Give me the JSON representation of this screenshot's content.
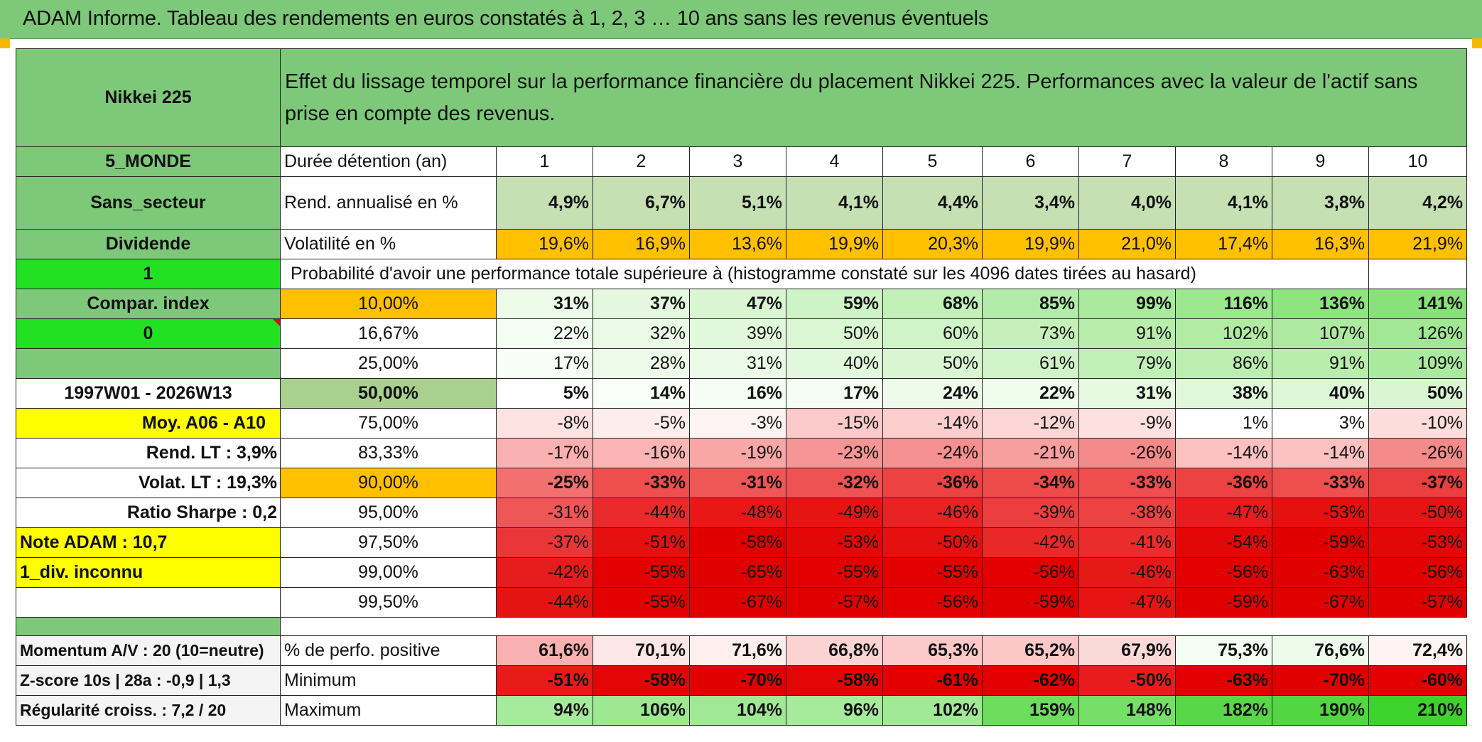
{
  "title": "ADAM Informe. Tableau des rendements en euros constatés à 1, 2, 3 … 10 ans sans les revenus éventuels",
  "header": {
    "asset": "Nikkei 225",
    "description": "Effet du lissage temporel sur la performance financière du placement Nikkei 225. Performances avec la valeur de l'actif sans prise en compte des revenus."
  },
  "sidebar": {
    "zone": "5_MONDE",
    "sector": "Sans_secteur",
    "dividend_label": "Dividende",
    "dividend_value": "1",
    "compar_label": "Compar. index",
    "compar_value": "0",
    "period": "1997W01 - 2026W13",
    "moy": "Moy. A06 - A10",
    "rend_lt": "Rend. LT :   3,9%",
    "volat_lt": "Volat. LT :   19,3%",
    "sharpe": "Ratio Sharpe :    0,2",
    "note": "Note ADAM : 10,7",
    "div_info": "1_div. inconnu"
  },
  "durations": {
    "label": "Durée détention (an)",
    "values": [
      "1",
      "2",
      "3",
      "4",
      "5",
      "6",
      "7",
      "8",
      "9",
      "10"
    ]
  },
  "rend": {
    "label": "Rend. annualisé en %",
    "values": [
      "4,9%",
      "6,7%",
      "5,1%",
      "4,1%",
      "4,4%",
      "3,4%",
      "4,0%",
      "4,1%",
      "3,8%",
      "4,2%"
    ]
  },
  "volat": {
    "label": "Volatilité en %",
    "values": [
      "19,6%",
      "16,9%",
      "13,6%",
      "19,9%",
      "20,3%",
      "19,9%",
      "21,0%",
      "17,4%",
      "16,3%",
      "21,9%"
    ]
  },
  "prob_header": "Probabilité d'avoir une performance totale supérieure à (histogramme constaté sur les 4096 dates tirées au hasard)",
  "prob_rows": [
    {
      "label": "10,00%",
      "values": [
        "31%",
        "37%",
        "47%",
        "59%",
        "68%",
        "85%",
        "99%",
        "116%",
        "136%",
        "141%"
      ]
    },
    {
      "label": "16,67%",
      "values": [
        "22%",
        "32%",
        "39%",
        "50%",
        "60%",
        "73%",
        "91%",
        "102%",
        "107%",
        "126%"
      ]
    },
    {
      "label": "25,00%",
      "values": [
        "17%",
        "28%",
        "31%",
        "40%",
        "50%",
        "61%",
        "79%",
        "86%",
        "91%",
        "109%"
      ]
    },
    {
      "label": "50,00%",
      "values": [
        "5%",
        "14%",
        "16%",
        "17%",
        "24%",
        "22%",
        "31%",
        "38%",
        "40%",
        "50%"
      ]
    },
    {
      "label": "75,00%",
      "values": [
        "-8%",
        "-5%",
        "-3%",
        "-15%",
        "-14%",
        "-12%",
        "-9%",
        "1%",
        "3%",
        "-10%"
      ]
    },
    {
      "label": "83,33%",
      "values": [
        "-17%",
        "-16%",
        "-19%",
        "-23%",
        "-24%",
        "-21%",
        "-26%",
        "-14%",
        "-14%",
        "-26%"
      ]
    },
    {
      "label": "90,00%",
      "values": [
        "-25%",
        "-33%",
        "-31%",
        "-32%",
        "-36%",
        "-34%",
        "-33%",
        "-36%",
        "-33%",
        "-37%"
      ]
    },
    {
      "label": "95,00%",
      "values": [
        "-31%",
        "-44%",
        "-48%",
        "-49%",
        "-46%",
        "-39%",
        "-38%",
        "-47%",
        "-53%",
        "-50%"
      ]
    },
    {
      "label": "97,50%",
      "values": [
        "-37%",
        "-51%",
        "-58%",
        "-53%",
        "-50%",
        "-42%",
        "-41%",
        "-54%",
        "-59%",
        "-53%"
      ]
    },
    {
      "label": "99,00%",
      "values": [
        "-42%",
        "-55%",
        "-65%",
        "-55%",
        "-55%",
        "-56%",
        "-46%",
        "-56%",
        "-63%",
        "-56%"
      ]
    },
    {
      "label": "99,50%",
      "values": [
        "-44%",
        "-55%",
        "-67%",
        "-57%",
        "-56%",
        "-59%",
        "-47%",
        "-59%",
        "-67%",
        "-57%"
      ]
    }
  ],
  "bottom": {
    "momentum": "Momentum A/V : 20 (10=neutre)",
    "zscore": "Z-score 10s | 28a : -0,9 | 1,3",
    "regularite": "Régularité croiss. : 7,2 / 20",
    "pos": {
      "label": "% de perfo. positive",
      "values": [
        "61,6%",
        "70,1%",
        "71,6%",
        "66,8%",
        "65,3%",
        "65,2%",
        "67,9%",
        "75,3%",
        "76,6%",
        "72,4%"
      ]
    },
    "min": {
      "label": "Minimum",
      "values": [
        "-51%",
        "-58%",
        "-70%",
        "-58%",
        "-61%",
        "-62%",
        "-50%",
        "-63%",
        "-70%",
        "-60%"
      ]
    },
    "max": {
      "label": "Maximum",
      "values": [
        "94%",
        "106%",
        "104%",
        "96%",
        "102%",
        "159%",
        "148%",
        "182%",
        "190%",
        "210%"
      ]
    }
  },
  "colors": {
    "header_green": "#7ec87a",
    "bright_green": "#22e022",
    "yellow": "#ffff00",
    "orange": "#ffc000",
    "label_red": "#d01010",
    "light_olive": "#c6e0b4",
    "olive": "#a9d08e"
  }
}
